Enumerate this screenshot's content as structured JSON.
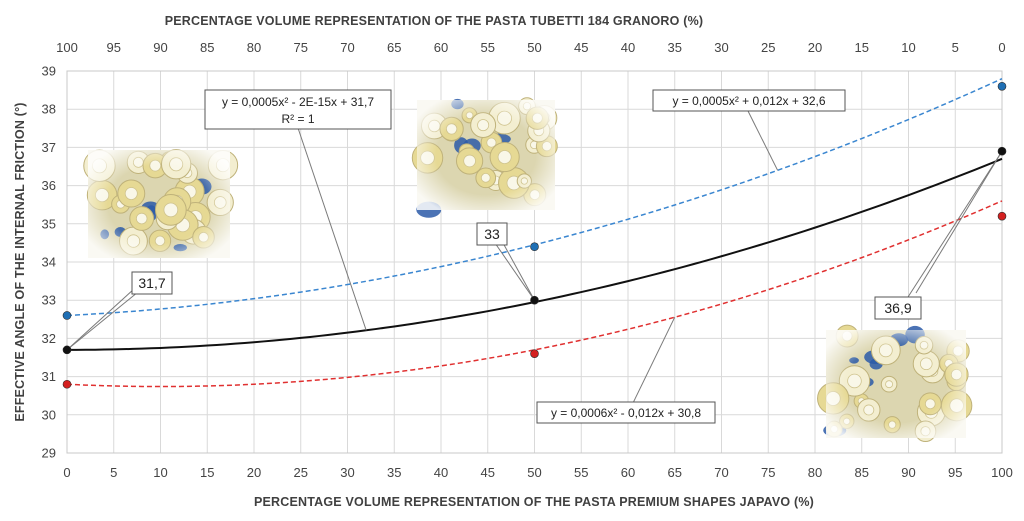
{
  "chart_data": {
    "type": "scatter",
    "title": "",
    "xlabel": "PERCENTAGE VOLUME REPRESENTATION OF THE PASTA PREMIUM SHAPES JAPAVO (%)",
    "x2label": "PERCENTAGE VOLUME REPRESENTATION OF THE PASTA TUBETTI 184 GRANORO (%)",
    "ylabel": "EFFECTIVE ANGLE OF THE INTERNAL FRICTION (°)",
    "xlim": [
      0,
      100
    ],
    "ylim": [
      29,
      39
    ],
    "x_ticks": [
      "0",
      "5",
      "10",
      "15",
      "20",
      "25",
      "30",
      "35",
      "40",
      "45",
      "50",
      "55",
      "60",
      "65",
      "70",
      "75",
      "80",
      "85",
      "90",
      "95",
      "100"
    ],
    "x2_ticks": [
      "100",
      "95",
      "90",
      "85",
      "80",
      "75",
      "70",
      "65",
      "60",
      "55",
      "50",
      "45",
      "40",
      "35",
      "30",
      "25",
      "20",
      "15",
      "10",
      "5",
      "0"
    ],
    "y_ticks": [
      "29",
      "30",
      "31",
      "32",
      "33",
      "34",
      "35",
      "36",
      "37",
      "38",
      "39"
    ],
    "grid": true,
    "series": [
      {
        "color": "#1f6fb4",
        "points": [
          {
            "x": 0,
            "y": 32.6
          },
          {
            "x": 50,
            "y": 34.4
          },
          {
            "x": 100,
            "y": 38.6
          }
        ],
        "trendline": {
          "a": 0.0005,
          "b": 0.012,
          "c": 32.6,
          "style": "dashed",
          "color": "#3a86d0"
        },
        "equation": "y = 0,0005x² + 0,012x + 32,6"
      },
      {
        "color": "#111111",
        "points": [
          {
            "x": 0,
            "y": 31.7
          },
          {
            "x": 50,
            "y": 33
          },
          {
            "x": 100,
            "y": 36.9
          }
        ],
        "trendline": {
          "a": 0.0005,
          "b": 0,
          "c": 31.7,
          "style": "solid",
          "color": "#111111"
        },
        "equation": "y = 0,0005x² - 2E-15x + 31,7",
        "r2": "R² = 1",
        "data_labels": [
          "31,7",
          "33",
          "36,9"
        ]
      },
      {
        "color": "#d42020",
        "points": [
          {
            "x": 0,
            "y": 30.8
          },
          {
            "x": 50,
            "y": 31.6
          },
          {
            "x": 100,
            "y": 35.2
          }
        ],
        "trendline": {
          "a": 0.0006,
          "b": -0.012,
          "c": 30.8,
          "style": "dashed",
          "color": "#e03030"
        },
        "equation": "y = 0,0006x² - 0,012x + 30,8"
      }
    ],
    "images": [
      "pasta-mix-photo",
      "pasta-mix-photo",
      "pasta-mix-photo"
    ]
  }
}
